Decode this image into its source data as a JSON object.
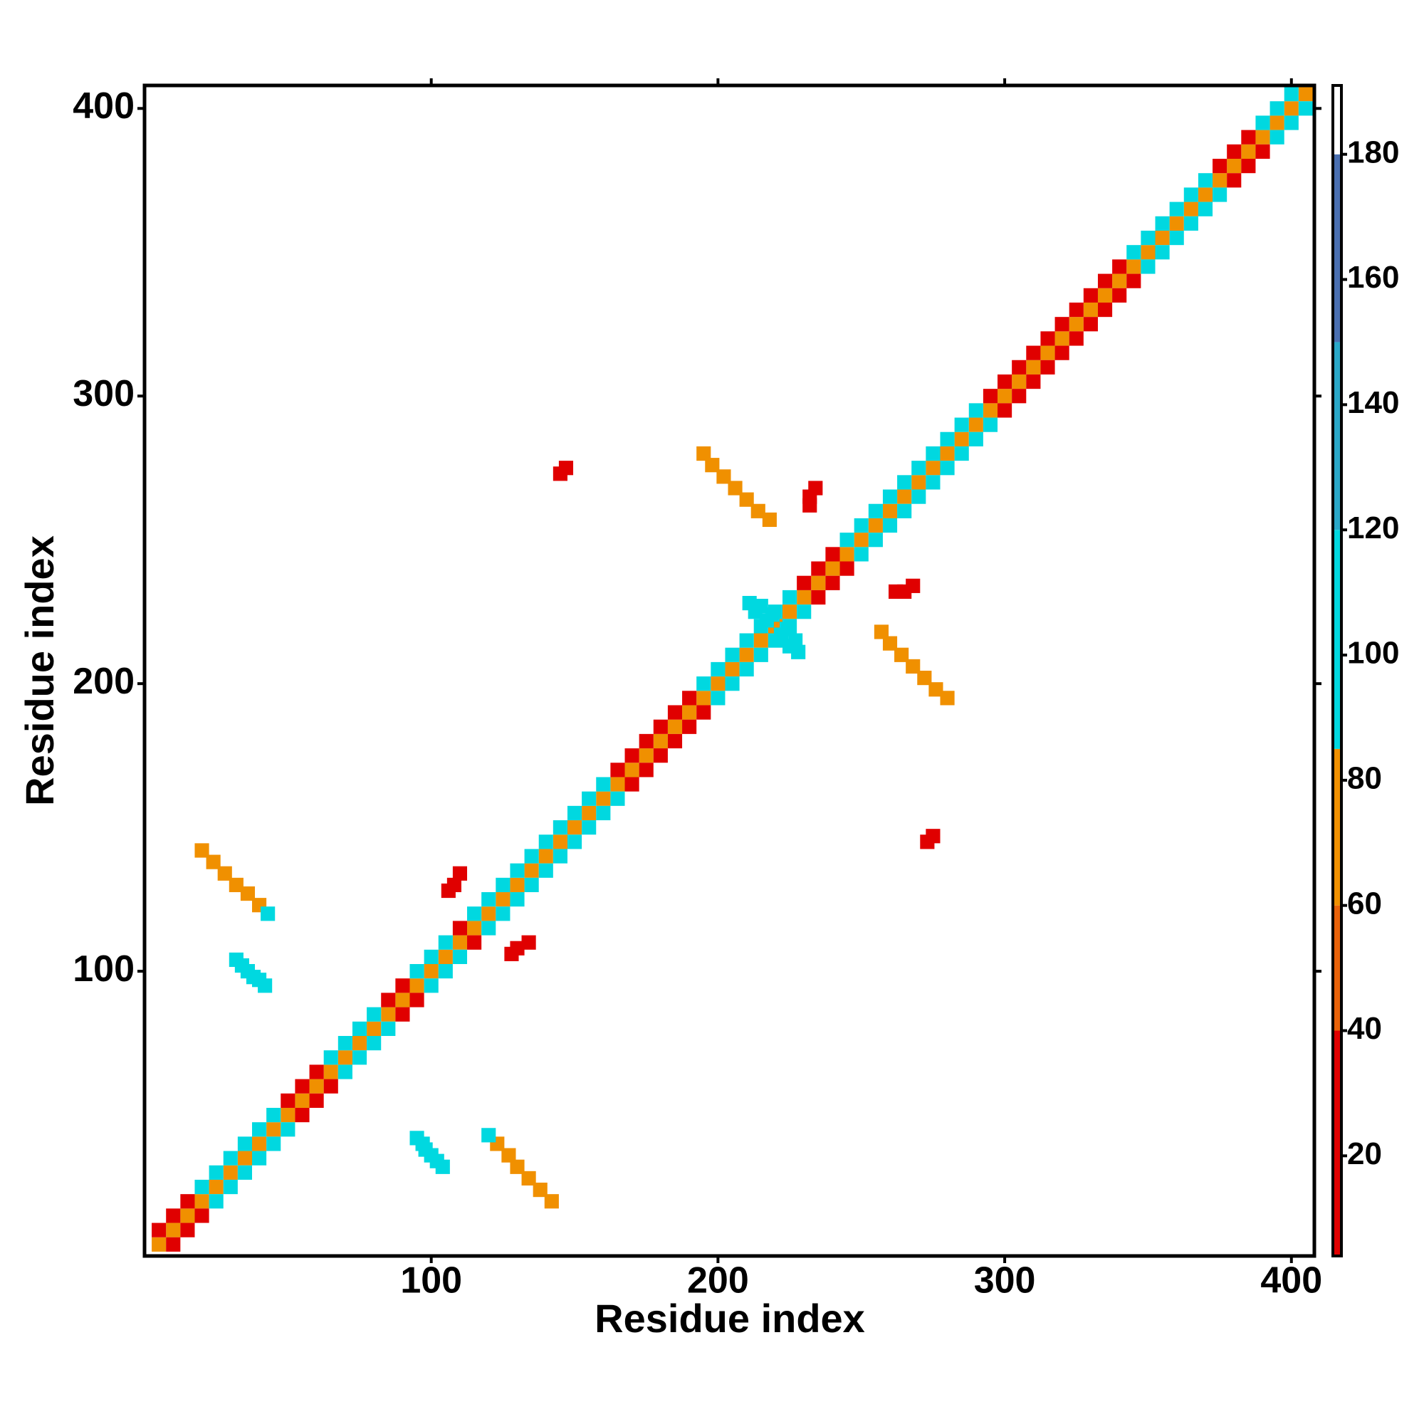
{
  "chart_data": {
    "type": "heatmap",
    "xlabel": "Residue index",
    "ylabel": "Residue index",
    "xlim": [
      0,
      408
    ],
    "ylim": [
      1,
      408
    ],
    "xticks": [
      100,
      200,
      300,
      400
    ],
    "yticks": [
      100,
      200,
      300,
      400
    ],
    "symmetric": true,
    "clim": [
      4,
      191
    ],
    "cticks": [
      20,
      40,
      60,
      80,
      100,
      120,
      140,
      160,
      180
    ],
    "colorscale": [
      [
        40,
        "#e00000"
      ],
      [
        60,
        "#e8620a"
      ],
      [
        85,
        "#f09000"
      ],
      [
        120,
        "#00d8e0"
      ],
      [
        150,
        "#2aa8c8"
      ],
      [
        180,
        "#4a6fb0"
      ],
      [
        191,
        "#ffffff"
      ]
    ],
    "x": [
      5,
      10,
      15,
      20,
      25,
      30,
      35,
      40,
      45,
      50,
      55,
      60,
      65,
      70,
      75,
      80,
      85,
      90,
      95,
      100,
      105,
      110,
      115,
      120,
      125,
      130,
      135,
      140,
      145,
      150,
      155,
      160,
      165,
      170,
      175,
      180,
      185,
      190,
      195,
      200,
      205,
      210,
      215,
      220,
      225,
      230,
      235,
      240,
      245,
      250,
      255,
      260,
      265,
      270,
      275,
      280,
      285,
      290,
      295,
      300,
      305,
      310,
      315,
      320,
      325,
      330,
      335,
      340,
      345,
      350,
      355,
      360,
      365,
      370,
      375,
      380,
      385,
      390,
      395,
      400,
      405,
      5,
      10,
      15,
      20,
      25,
      30,
      35,
      40,
      45,
      50,
      55,
      60,
      65,
      70,
      75,
      80,
      85,
      90,
      95,
      100,
      105,
      110,
      115,
      120,
      125,
      130,
      135,
      140,
      145,
      150,
      155,
      160,
      165,
      170,
      175,
      180,
      185,
      190,
      195,
      200,
      205,
      210,
      215,
      220,
      225,
      230,
      235,
      240,
      245,
      250,
      255,
      260,
      265,
      270,
      275,
      280,
      285,
      290,
      295,
      300,
      305,
      310,
      315,
      320,
      325,
      330,
      335,
      340,
      345,
      350,
      355,
      360,
      365,
      370,
      375,
      380,
      385,
      390,
      395,
      400,
      145,
      147,
      32,
      34,
      36,
      38,
      40,
      42,
      20,
      24,
      28,
      32,
      36,
      40,
      43,
      106,
      108,
      110,
      211,
      213,
      215,
      217,
      219,
      195,
      198,
      202,
      206,
      210,
      214,
      218,
      232,
      232,
      234
    ],
    "y": [
      5,
      10,
      15,
      20,
      25,
      30,
      35,
      40,
      45,
      50,
      55,
      60,
      65,
      70,
      75,
      80,
      85,
      90,
      95,
      100,
      105,
      110,
      115,
      120,
      125,
      130,
      135,
      140,
      145,
      150,
      155,
      160,
      165,
      170,
      175,
      180,
      185,
      190,
      195,
      200,
      205,
      210,
      215,
      220,
      225,
      230,
      235,
      240,
      245,
      250,
      255,
      260,
      265,
      270,
      275,
      280,
      285,
      290,
      295,
      300,
      305,
      310,
      315,
      320,
      325,
      330,
      335,
      340,
      345,
      350,
      355,
      360,
      365,
      370,
      375,
      380,
      385,
      390,
      395,
      400,
      405,
      10,
      15,
      20,
      25,
      30,
      35,
      40,
      45,
      50,
      55,
      60,
      65,
      70,
      75,
      80,
      85,
      90,
      95,
      100,
      105,
      110,
      115,
      120,
      125,
      130,
      135,
      140,
      145,
      150,
      155,
      160,
      165,
      170,
      175,
      180,
      185,
      190,
      195,
      200,
      205,
      210,
      215,
      220,
      225,
      230,
      235,
      240,
      245,
      250,
      255,
      260,
      265,
      270,
      275,
      280,
      285,
      290,
      295,
      300,
      305,
      310,
      315,
      320,
      325,
      330,
      335,
      340,
      345,
      350,
      355,
      360,
      365,
      370,
      375,
      380,
      385,
      390,
      395,
      400,
      405,
      273,
      275,
      104,
      102,
      100,
      98,
      97,
      95,
      142,
      138,
      134,
      130,
      127,
      123,
      120,
      128,
      130,
      134,
      228,
      225,
      227,
      222,
      224,
      280,
      276,
      272,
      268,
      264,
      260,
      257,
      262,
      265,
      268
    ],
    "values": [
      70,
      70,
      70,
      70,
      70,
      70,
      70,
      70,
      70,
      70,
      70,
      70,
      70,
      70,
      70,
      70,
      70,
      70,
      70,
      70,
      70,
      70,
      70,
      70,
      70,
      70,
      70,
      70,
      70,
      70,
      70,
      70,
      70,
      70,
      70,
      70,
      70,
      70,
      70,
      70,
      70,
      70,
      70,
      70,
      70,
      70,
      70,
      70,
      70,
      70,
      70,
      70,
      70,
      70,
      70,
      70,
      70,
      70,
      70,
      70,
      70,
      70,
      70,
      70,
      70,
      70,
      70,
      70,
      70,
      70,
      70,
      70,
      70,
      70,
      70,
      70,
      70,
      70,
      70,
      70,
      70,
      30,
      30,
      30,
      95,
      95,
      95,
      95,
      95,
      95,
      30,
      30,
      30,
      95,
      95,
      95,
      95,
      30,
      30,
      95,
      95,
      95,
      30,
      95,
      95,
      95,
      95,
      95,
      95,
      95,
      95,
      95,
      95,
      30,
      30,
      30,
      30,
      30,
      30,
      95,
      95,
      95,
      95,
      95,
      95,
      95,
      30,
      30,
      30,
      95,
      95,
      95,
      95,
      95,
      95,
      95,
      95,
      95,
      95,
      30,
      30,
      30,
      30,
      30,
      30,
      30,
      30,
      30,
      30,
      95,
      95,
      95,
      95,
      95,
      95,
      30,
      30,
      30,
      95,
      95,
      95,
      20,
      25,
      100,
      100,
      100,
      100,
      100,
      100,
      70,
      70,
      70,
      70,
      70,
      75,
      100,
      30,
      30,
      30,
      100,
      100,
      100,
      100,
      100,
      70,
      70,
      70,
      70,
      70,
      75,
      70,
      35,
      30,
      35
    ]
  }
}
